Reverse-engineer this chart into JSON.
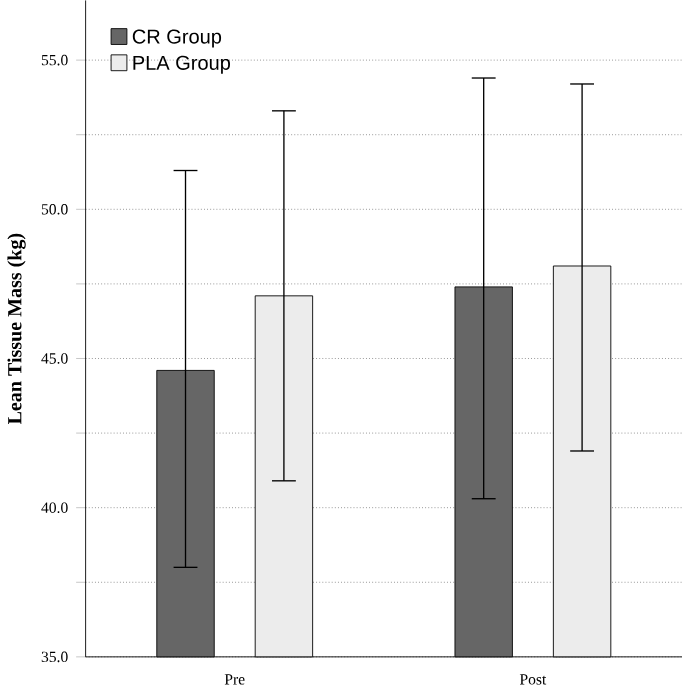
{
  "chart_data": {
    "type": "bar",
    "ylabel": "Lean Tissue Mass (kg)",
    "categories": [
      "Pre",
      "Post"
    ],
    "series": [
      {
        "name": "CR Group",
        "color": "#666666",
        "values": [
          44.6,
          47.4
        ],
        "errors": [
          [
            38.0,
            51.3
          ],
          [
            40.3,
            54.4
          ]
        ]
      },
      {
        "name": "PLA Group",
        "color": "#ececec",
        "values": [
          47.1,
          48.1
        ],
        "errors": [
          [
            40.9,
            53.3
          ],
          [
            41.9,
            54.2
          ]
        ]
      }
    ],
    "ylim": [
      35,
      57
    ],
    "yticks": [
      {
        "value": 35,
        "label": "35.0"
      },
      {
        "value": 37.5,
        "label": null
      },
      {
        "value": 40,
        "label": "40.0"
      },
      {
        "value": 42.5,
        "label": null
      },
      {
        "value": 45,
        "label": "45.0"
      },
      {
        "value": 47.5,
        "label": null
      },
      {
        "value": 50,
        "label": "50.0"
      },
      {
        "value": 52.5,
        "label": null
      },
      {
        "value": 55,
        "label": "55.0"
      }
    ],
    "grid": "y",
    "legend": "top left"
  }
}
